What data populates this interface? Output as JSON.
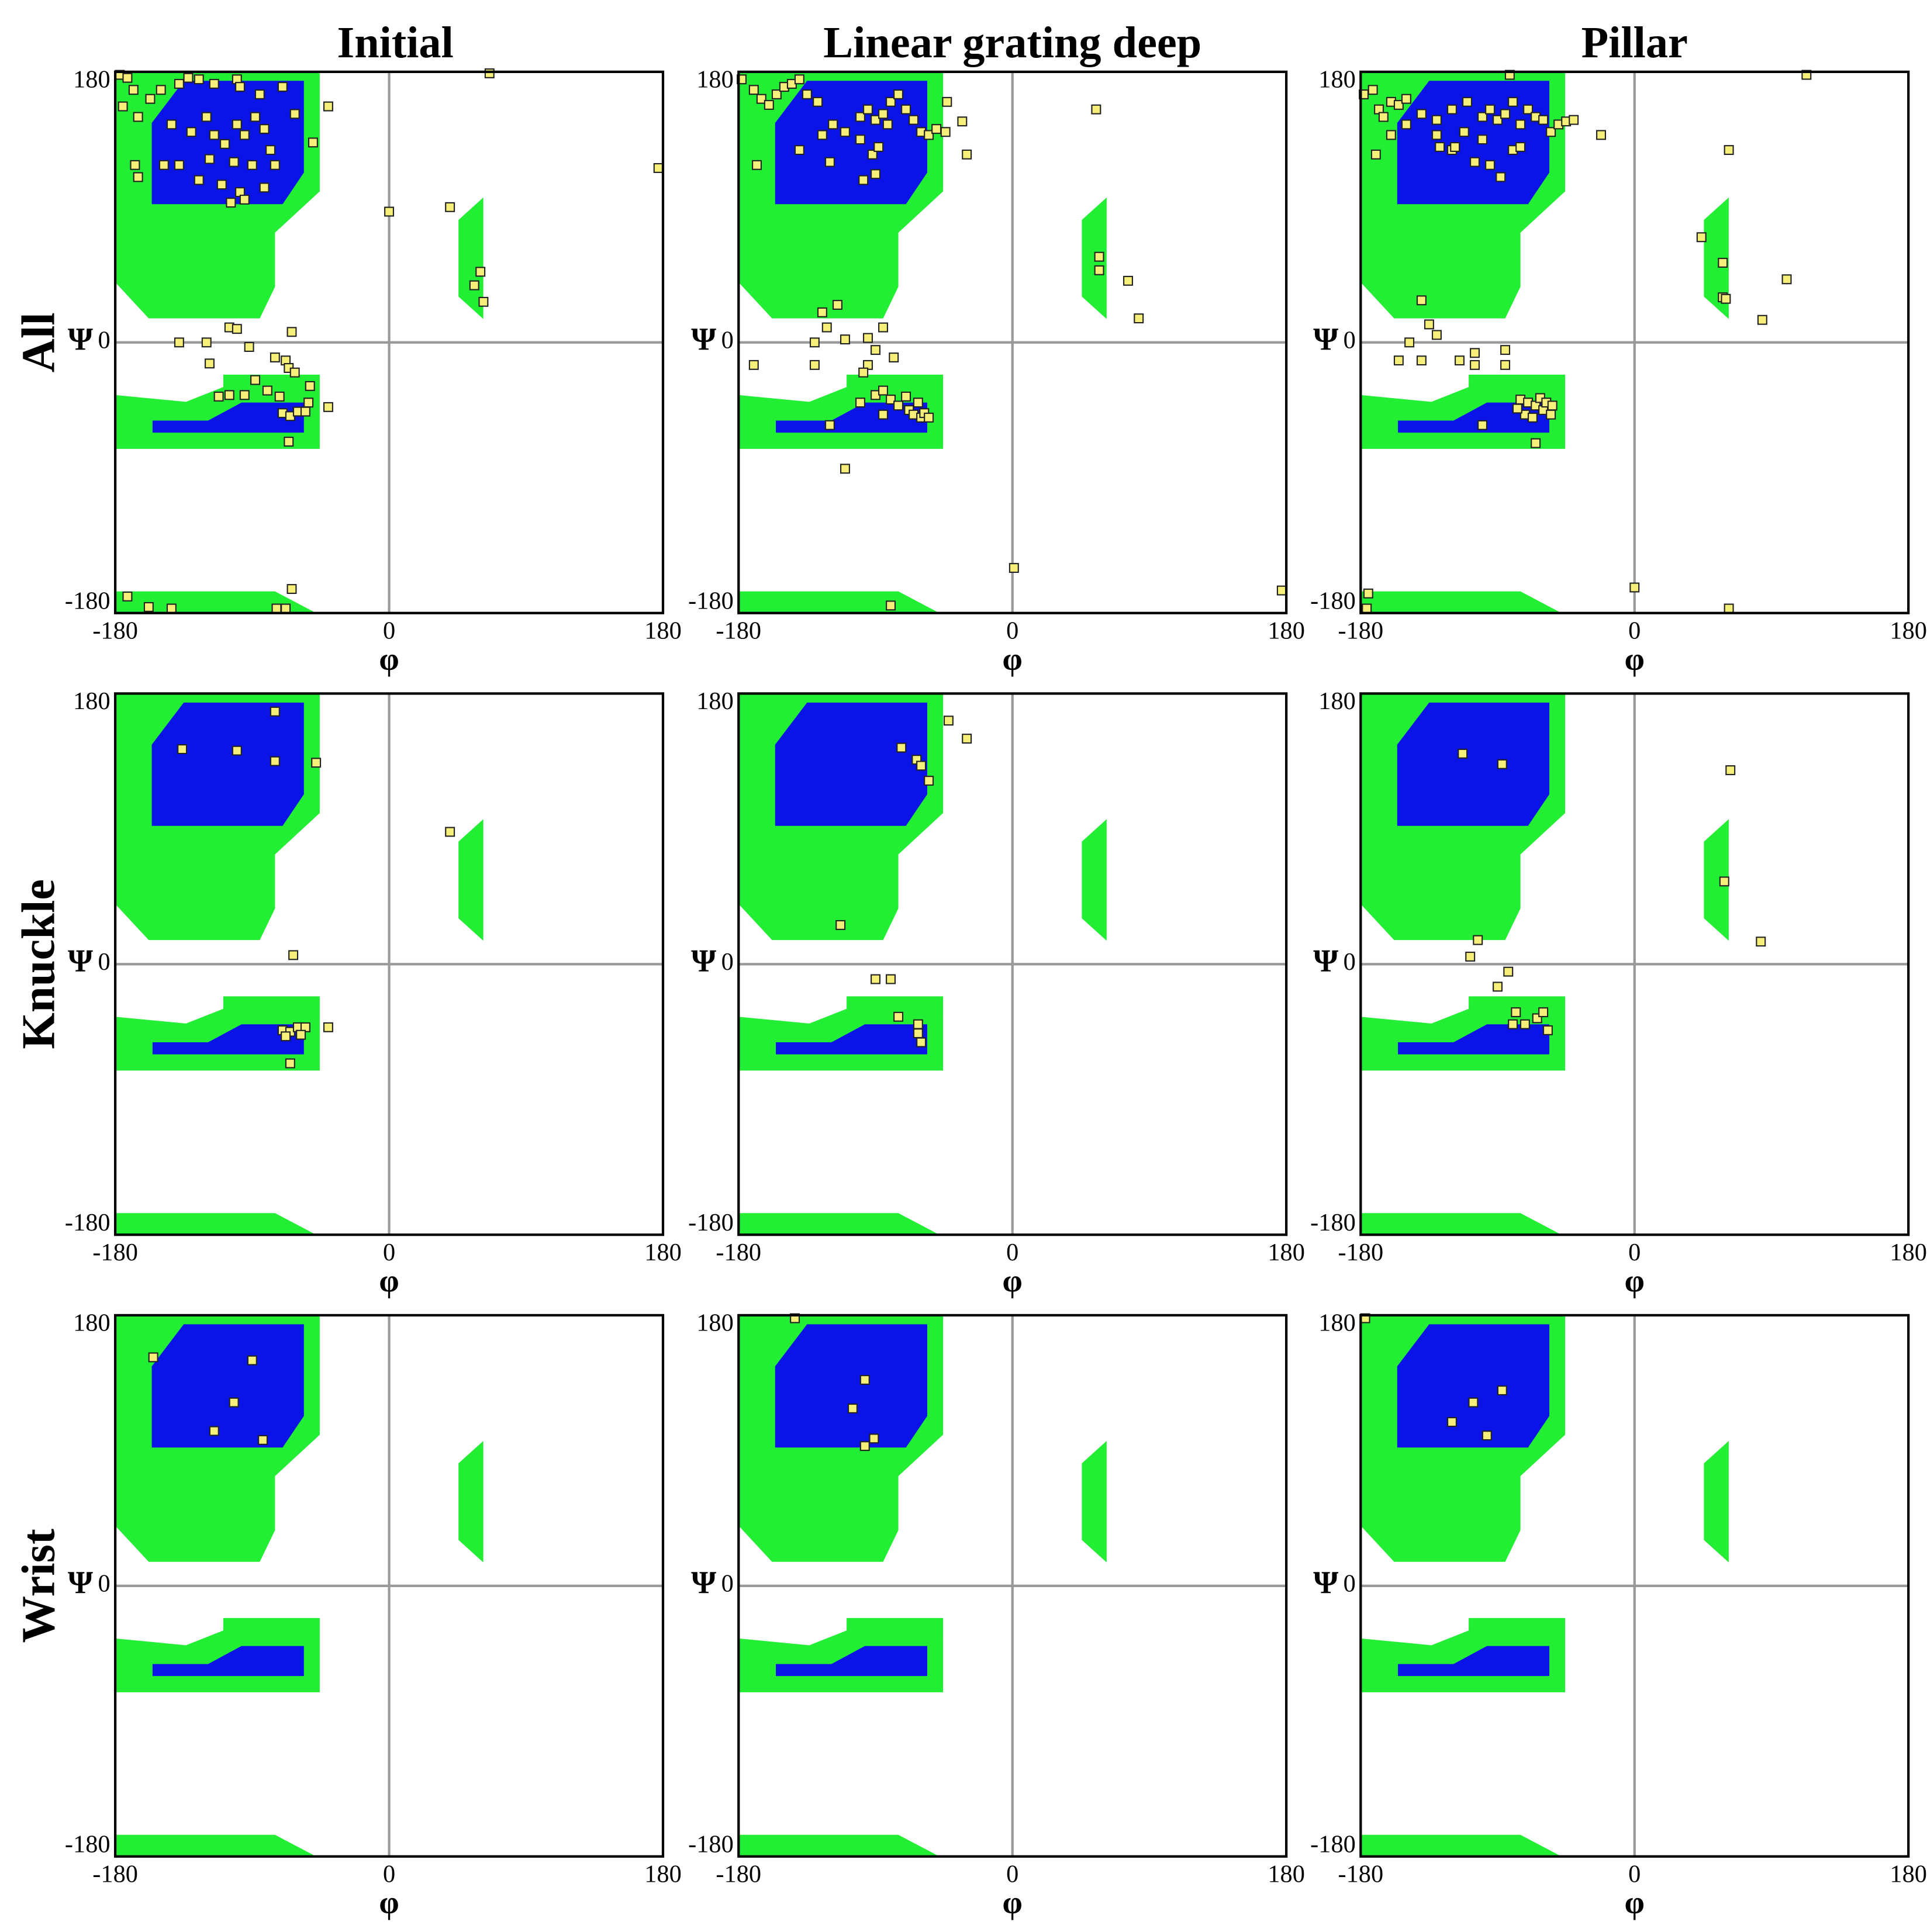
{
  "column_titles": [
    "Initial",
    "Linear grating deep",
    "Pillar"
  ],
  "row_titles": [
    "All",
    "Knuckle",
    "Wrist"
  ],
  "chart_data": [
    {
      "type": "scatter",
      "xlabel": "φ",
      "ylabel": "Ψ",
      "xlim": [
        -180,
        180
      ],
      "ylim": [
        -180,
        180
      ],
      "xticks": [
        -180,
        0,
        180
      ],
      "yticks": [
        -180,
        0,
        180
      ],
      "color": "#f6f07a",
      "x": [
        -177,
        -172,
        -168,
        -175,
        -165,
        -157,
        -150,
        -138,
        -132,
        -125,
        -115,
        -100,
        -98,
        -85,
        -70,
        -62,
        -143,
        -130,
        -120,
        -115,
        -108,
        -100,
        -95,
        -88,
        -82,
        -78,
        -75,
        -90,
        -102,
        -118,
        -138,
        -148,
        -125,
        -110,
        -98,
        -82,
        -95,
        -104,
        -167,
        -165,
        -40,
        -50,
        177,
        0,
        40,
        60,
        62,
        56,
        66,
        -138,
        -120,
        -118,
        -105,
        -100,
        -92,
        -64,
        -75,
        -68,
        -66,
        -62,
        -52,
        -40,
        -105,
        -95,
        -88,
        -80,
        -72,
        -70,
        -65,
        -60,
        -55,
        -53,
        -66,
        -112,
        -172,
        -158,
        -143,
        -64,
        -68,
        -74
      ],
      "values": [
        178,
        176,
        168,
        157,
        150,
        162,
        168,
        172,
        176,
        175,
        172,
        175,
        170,
        165,
        170,
        152,
        145,
        140,
        150,
        138,
        132,
        145,
        138,
        150,
        142,
        128,
        118,
        118,
        120,
        122,
        118,
        118,
        108,
        105,
        100,
        103,
        95,
        93,
        118,
        110,
        157,
        133,
        116,
        87,
        90,
        47,
        27,
        38,
        179,
        0,
        0,
        -14,
        10,
        9,
        -3,
        7,
        -10,
        -12,
        -17,
        -20,
        -29,
        -43,
        -35,
        -35,
        -25,
        -32,
        -36,
        -47,
        -49,
        -46,
        -46,
        -40,
        -66,
        -36,
        -169,
        -176,
        -177,
        -164,
        -177,
        -177
      ]
    },
    {
      "type": "scatter",
      "xlabel": "φ",
      "ylabel": "Ψ",
      "xlim": [
        -180,
        180
      ],
      "ylim": [
        -180,
        180
      ],
      "xticks": [
        -180,
        0,
        180
      ],
      "yticks": [
        -180,
        0,
        180
      ],
      "color": "#f6f07a",
      "x": [
        -178,
        -170,
        -165,
        -160,
        -155,
        -150,
        -145,
        -140,
        -135,
        -128,
        -168,
        -140,
        -125,
        -118,
        -110,
        -100,
        -95,
        -90,
        -85,
        -80,
        -75,
        -70,
        -65,
        -60,
        -100,
        -92,
        -88,
        -82,
        -120,
        -98,
        -90,
        -43,
        -33,
        -30,
        -44,
        -55,
        -50,
        55,
        57,
        57,
        76,
        83,
        1,
        177,
        -80,
        -110,
        -170,
        -130,
        -125,
        -115,
        -122,
        -130,
        -110,
        -95,
        -90,
        -85,
        -78,
        -95,
        -98,
        -100,
        -90,
        -85,
        -80,
        -75,
        -70,
        -68,
        -65,
        -62,
        -60,
        -58,
        -55,
        -85,
        -120
      ],
      "values": [
        175,
        168,
        162,
        158,
        165,
        170,
        172,
        175,
        165,
        160,
        118,
        128,
        138,
        145,
        140,
        150,
        155,
        148,
        152,
        160,
        165,
        155,
        148,
        140,
        135,
        125,
        130,
        145,
        120,
        108,
        112,
        160,
        147,
        125,
        140,
        138,
        142,
        155,
        57,
        48,
        41,
        16,
        -150,
        -165,
        -175,
        -84,
        -15,
        -15,
        20,
        25,
        10,
        0,
        2,
        3,
        -5,
        10,
        -10,
        -15,
        -20,
        -40,
        -35,
        -32,
        -38,
        -42,
        -36,
        -45,
        -48,
        -40,
        -50,
        -47,
        -50,
        -48,
        -55
      ]
    },
    {
      "type": "scatter",
      "xlabel": "φ",
      "ylabel": "Ψ",
      "xlim": [
        -180,
        180
      ],
      "ylim": [
        -180,
        180
      ],
      "xticks": [
        -180,
        0,
        180
      ],
      "yticks": [
        -180,
        0,
        180
      ],
      "color": "#f6f07a",
      "x": [
        -178,
        -172,
        -168,
        -165,
        -160,
        -155,
        -150,
        -140,
        -130,
        -120,
        -110,
        -100,
        -95,
        -90,
        -85,
        -80,
        -75,
        -70,
        -65,
        -60,
        -55,
        -50,
        -45,
        -100,
        -112,
        -120,
        -130,
        -150,
        -160,
        -105,
        -95,
        -88,
        -80,
        -75,
        -118,
        -128,
        -40,
        -22,
        -82,
        -170,
        113,
        62,
        44,
        58,
        58,
        60,
        100,
        84,
        0,
        62,
        -175,
        -176,
        -140,
        -148,
        -155,
        -140,
        -135,
        -130,
        -105,
        -85,
        -85,
        -105,
        -115,
        -75,
        -70,
        -65,
        -60,
        -55,
        -72,
        -67,
        -62,
        -58,
        -65,
        -100,
        -77,
        -54
      ],
      "values": [
        165,
        168,
        155,
        150,
        160,
        158,
        162,
        152,
        148,
        155,
        160,
        150,
        155,
        148,
        152,
        160,
        145,
        155,
        150,
        148,
        140,
        145,
        147,
        135,
        140,
        128,
        138,
        145,
        138,
        120,
        118,
        110,
        128,
        130,
        130,
        130,
        148,
        138,
        178,
        125,
        178,
        128,
        70,
        53,
        30,
        29,
        42,
        15,
        -163,
        -177,
        -167,
        -177,
        28,
        0,
        -12,
        -12,
        12,
        5,
        -7,
        -5,
        -15,
        -15,
        -12,
        -38,
        -40,
        -42,
        -45,
        -48,
        -48,
        -50,
        -37,
        -40,
        -67,
        -55,
        -44,
        -42
      ]
    },
    {
      "type": "scatter",
      "xlabel": "φ",
      "ylabel": "Ψ",
      "xlim": [
        -180,
        180
      ],
      "ylim": [
        -180,
        180
      ],
      "xticks": [
        -180,
        0,
        180
      ],
      "yticks": [
        -180,
        0,
        180
      ],
      "color": "#f6f07a",
      "x": [
        -136,
        -100,
        -75,
        -75,
        -48,
        40,
        -63,
        -70,
        -65,
        -60,
        -55,
        -40,
        -65,
        -68,
        -58
      ],
      "values": [
        143,
        142,
        135,
        168,
        134,
        88,
        6,
        -44,
        -45,
        -42,
        -42,
        -42,
        -66,
        -48,
        -47
      ]
    },
    {
      "type": "scatter",
      "xlabel": "φ",
      "ylabel": "Ψ",
      "xlim": [
        -180,
        180
      ],
      "ylim": [
        -180,
        180
      ],
      "xticks": [
        -180,
        0,
        180
      ],
      "yticks": [
        -180,
        0,
        180
      ],
      "color": "#f6f07a",
      "x": [
        -73,
        -63,
        -60,
        -55,
        -42,
        -30,
        -113,
        -90,
        -80,
        -75,
        -62,
        -62,
        -60
      ],
      "values": [
        144,
        136,
        132,
        122,
        162,
        150,
        26,
        -10,
        -10,
        -35,
        -40,
        -46,
        -52
      ]
    },
    {
      "type": "scatter",
      "xlabel": "φ",
      "ylabel": "Ψ",
      "xlim": [
        -180,
        180
      ],
      "ylim": [
        -180,
        180
      ],
      "xticks": [
        -180,
        0,
        180
      ],
      "yticks": [
        -180,
        0,
        180
      ],
      "color": "#f6f07a",
      "x": [
        -113,
        -87,
        63,
        59,
        83,
        -103,
        -108,
        -90,
        -83,
        -78,
        -80,
        -72,
        -64,
        -60,
        -57
      ],
      "values": [
        140,
        133,
        129,
        55,
        15,
        16,
        5,
        -15,
        -5,
        -32,
        -40,
        -40,
        -36,
        -32,
        -44
      ]
    },
    {
      "type": "scatter",
      "xlabel": "φ",
      "ylabel": "Ψ",
      "xlim": [
        -180,
        180
      ],
      "ylim": [
        -180,
        180
      ],
      "xticks": [
        -180,
        0,
        180
      ],
      "yticks": [
        -180,
        0,
        180
      ],
      "color": "#f6f07a",
      "x": [
        -155,
        -90,
        -102,
        -115,
        -83
      ],
      "values": [
        152,
        150,
        122,
        103,
        97
      ]
    },
    {
      "type": "scatter",
      "xlabel": "φ",
      "ylabel": "Ψ",
      "xlim": [
        -180,
        180
      ],
      "ylim": [
        -180,
        180
      ],
      "xticks": [
        -180,
        0,
        180
      ],
      "yticks": [
        -180,
        0,
        180
      ],
      "color": "#f6f07a",
      "x": [
        -143,
        -97,
        -105,
        -97,
        -91
      ],
      "values": [
        178,
        137,
        118,
        93,
        98
      ]
    },
    {
      "type": "scatter",
      "xlabel": "φ",
      "ylabel": "Ψ",
      "xlim": [
        -180,
        180
      ],
      "ylim": [
        -180,
        180
      ],
      "xticks": [
        -180,
        0,
        180
      ],
      "yticks": [
        -180,
        0,
        180
      ],
      "color": "#f6f07a",
      "x": [
        -177,
        -87,
        -106,
        -120,
        -97
      ],
      "values": [
        178,
        130,
        122,
        109,
        100
      ]
    }
  ]
}
